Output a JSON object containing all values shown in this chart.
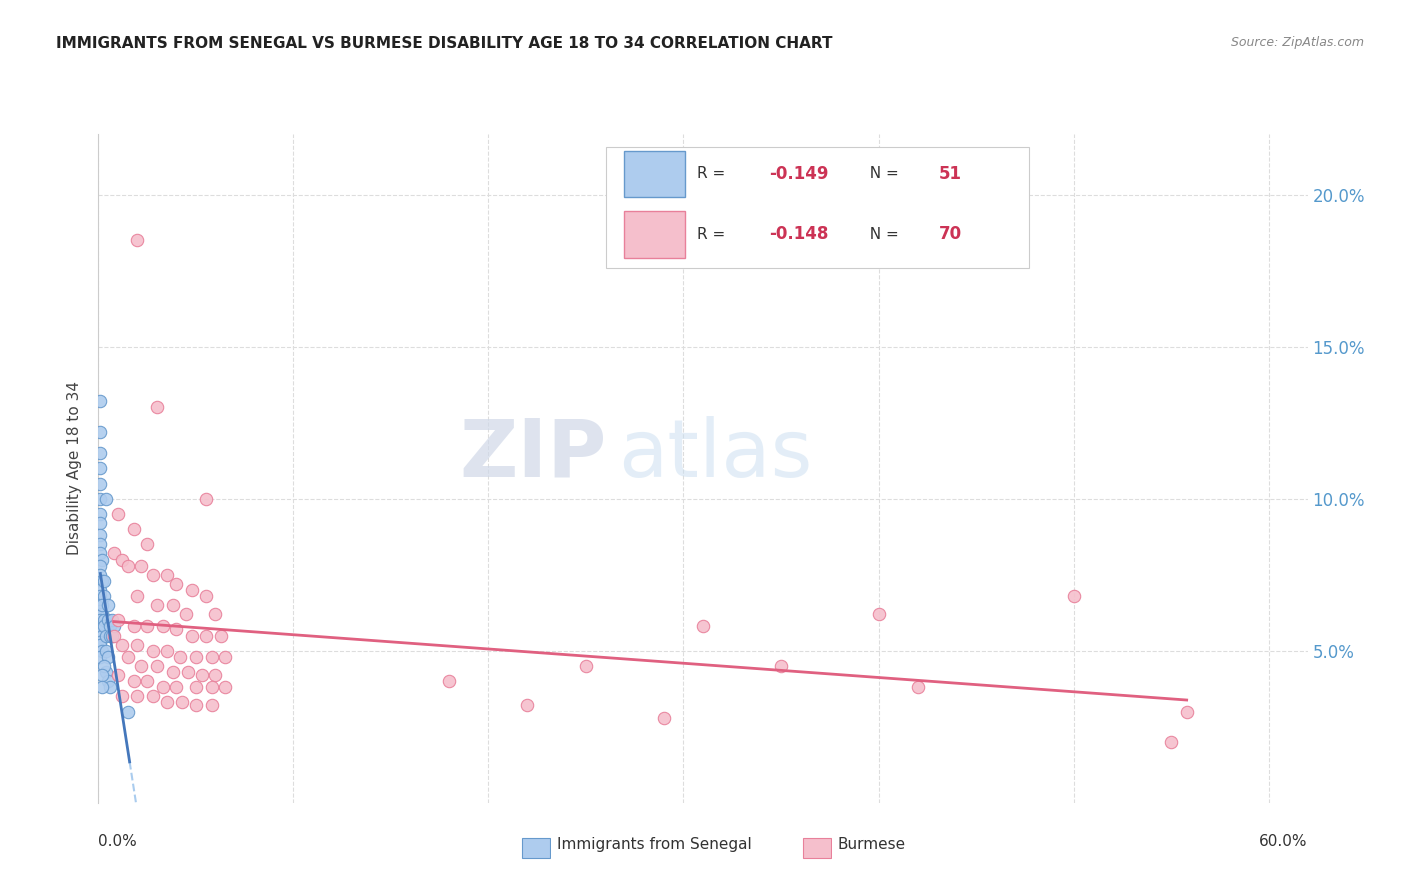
{
  "title": "IMMIGRANTS FROM SENEGAL VS BURMESE DISABILITY AGE 18 TO 34 CORRELATION CHART",
  "source": "Source: ZipAtlas.com",
  "ylabel": "Disability Age 18 to 34",
  "watermark_zip": "ZIP",
  "watermark_atlas": "atlas",
  "senegal_color_fill": "#aeccee",
  "senegal_color_edge": "#6699cc",
  "burmese_color_fill": "#f5bfcc",
  "burmese_color_edge": "#e8809a",
  "reg_senegal_color": "#4477bb",
  "reg_burmese_color": "#e06080",
  "reg_dashed_color": "#aaccee",
  "ytick_color": "#5599cc",
  "ylim": [
    0.0,
    0.22
  ],
  "xlim": [
    0.0,
    0.62
  ],
  "yticks": [
    0.05,
    0.1,
    0.15,
    0.2
  ],
  "ytick_labels": [
    "5.0%",
    "10.0%",
    "15.0%",
    "20.0%"
  ],
  "senegal_pts": [
    [
      0.001,
      0.132
    ],
    [
      0.001,
      0.122
    ],
    [
      0.001,
      0.115
    ],
    [
      0.001,
      0.11
    ],
    [
      0.001,
      0.105
    ],
    [
      0.001,
      0.1
    ],
    [
      0.001,
      0.095
    ],
    [
      0.001,
      0.092
    ],
    [
      0.001,
      0.088
    ],
    [
      0.001,
      0.085
    ],
    [
      0.001,
      0.082
    ],
    [
      0.002,
      0.08
    ],
    [
      0.001,
      0.078
    ],
    [
      0.001,
      0.075
    ],
    [
      0.002,
      0.073
    ],
    [
      0.001,
      0.07
    ],
    [
      0.001,
      0.068
    ],
    [
      0.001,
      0.065
    ],
    [
      0.001,
      0.063
    ],
    [
      0.002,
      0.062
    ],
    [
      0.001,
      0.06
    ],
    [
      0.001,
      0.058
    ],
    [
      0.001,
      0.057
    ],
    [
      0.002,
      0.055
    ],
    [
      0.001,
      0.053
    ],
    [
      0.001,
      0.052
    ],
    [
      0.002,
      0.05
    ],
    [
      0.001,
      0.048
    ],
    [
      0.003,
      0.073
    ],
    [
      0.004,
      0.1
    ],
    [
      0.003,
      0.068
    ],
    [
      0.002,
      0.065
    ],
    [
      0.003,
      0.06
    ],
    [
      0.003,
      0.058
    ],
    [
      0.004,
      0.055
    ],
    [
      0.005,
      0.065
    ],
    [
      0.005,
      0.06
    ],
    [
      0.004,
      0.05
    ],
    [
      0.005,
      0.048
    ],
    [
      0.006,
      0.058
    ],
    [
      0.006,
      0.055
    ],
    [
      0.007,
      0.06
    ],
    [
      0.007,
      0.055
    ],
    [
      0.008,
      0.058
    ],
    [
      0.004,
      0.043
    ],
    [
      0.005,
      0.04
    ],
    [
      0.006,
      0.038
    ],
    [
      0.003,
      0.045
    ],
    [
      0.002,
      0.042
    ],
    [
      0.002,
      0.038
    ],
    [
      0.015,
      0.03
    ]
  ],
  "burmese_pts": [
    [
      0.02,
      0.185
    ],
    [
      0.03,
      0.13
    ],
    [
      0.055,
      0.1
    ],
    [
      0.01,
      0.095
    ],
    [
      0.018,
      0.09
    ],
    [
      0.025,
      0.085
    ],
    [
      0.008,
      0.082
    ],
    [
      0.012,
      0.08
    ],
    [
      0.015,
      0.078
    ],
    [
      0.022,
      0.078
    ],
    [
      0.028,
      0.075
    ],
    [
      0.035,
      0.075
    ],
    [
      0.04,
      0.072
    ],
    [
      0.048,
      0.07
    ],
    [
      0.055,
      0.068
    ],
    [
      0.02,
      0.068
    ],
    [
      0.03,
      0.065
    ],
    [
      0.038,
      0.065
    ],
    [
      0.045,
      0.062
    ],
    [
      0.06,
      0.062
    ],
    [
      0.01,
      0.06
    ],
    [
      0.018,
      0.058
    ],
    [
      0.025,
      0.058
    ],
    [
      0.033,
      0.058
    ],
    [
      0.04,
      0.057
    ],
    [
      0.048,
      0.055
    ],
    [
      0.055,
      0.055
    ],
    [
      0.063,
      0.055
    ],
    [
      0.008,
      0.055
    ],
    [
      0.012,
      0.052
    ],
    [
      0.02,
      0.052
    ],
    [
      0.028,
      0.05
    ],
    [
      0.035,
      0.05
    ],
    [
      0.042,
      0.048
    ],
    [
      0.05,
      0.048
    ],
    [
      0.058,
      0.048
    ],
    [
      0.065,
      0.048
    ],
    [
      0.015,
      0.048
    ],
    [
      0.022,
      0.045
    ],
    [
      0.03,
      0.045
    ],
    [
      0.038,
      0.043
    ],
    [
      0.046,
      0.043
    ],
    [
      0.053,
      0.042
    ],
    [
      0.06,
      0.042
    ],
    [
      0.01,
      0.042
    ],
    [
      0.018,
      0.04
    ],
    [
      0.025,
      0.04
    ],
    [
      0.033,
      0.038
    ],
    [
      0.04,
      0.038
    ],
    [
      0.05,
      0.038
    ],
    [
      0.058,
      0.038
    ],
    [
      0.065,
      0.038
    ],
    [
      0.012,
      0.035
    ],
    [
      0.02,
      0.035
    ],
    [
      0.028,
      0.035
    ],
    [
      0.035,
      0.033
    ],
    [
      0.043,
      0.033
    ],
    [
      0.05,
      0.032
    ],
    [
      0.058,
      0.032
    ],
    [
      0.5,
      0.068
    ],
    [
      0.558,
      0.03
    ],
    [
      0.4,
      0.062
    ],
    [
      0.31,
      0.058
    ],
    [
      0.25,
      0.045
    ],
    [
      0.35,
      0.045
    ],
    [
      0.42,
      0.038
    ],
    [
      0.18,
      0.04
    ],
    [
      0.22,
      0.032
    ],
    [
      0.29,
      0.028
    ],
    [
      0.55,
      0.02
    ]
  ]
}
